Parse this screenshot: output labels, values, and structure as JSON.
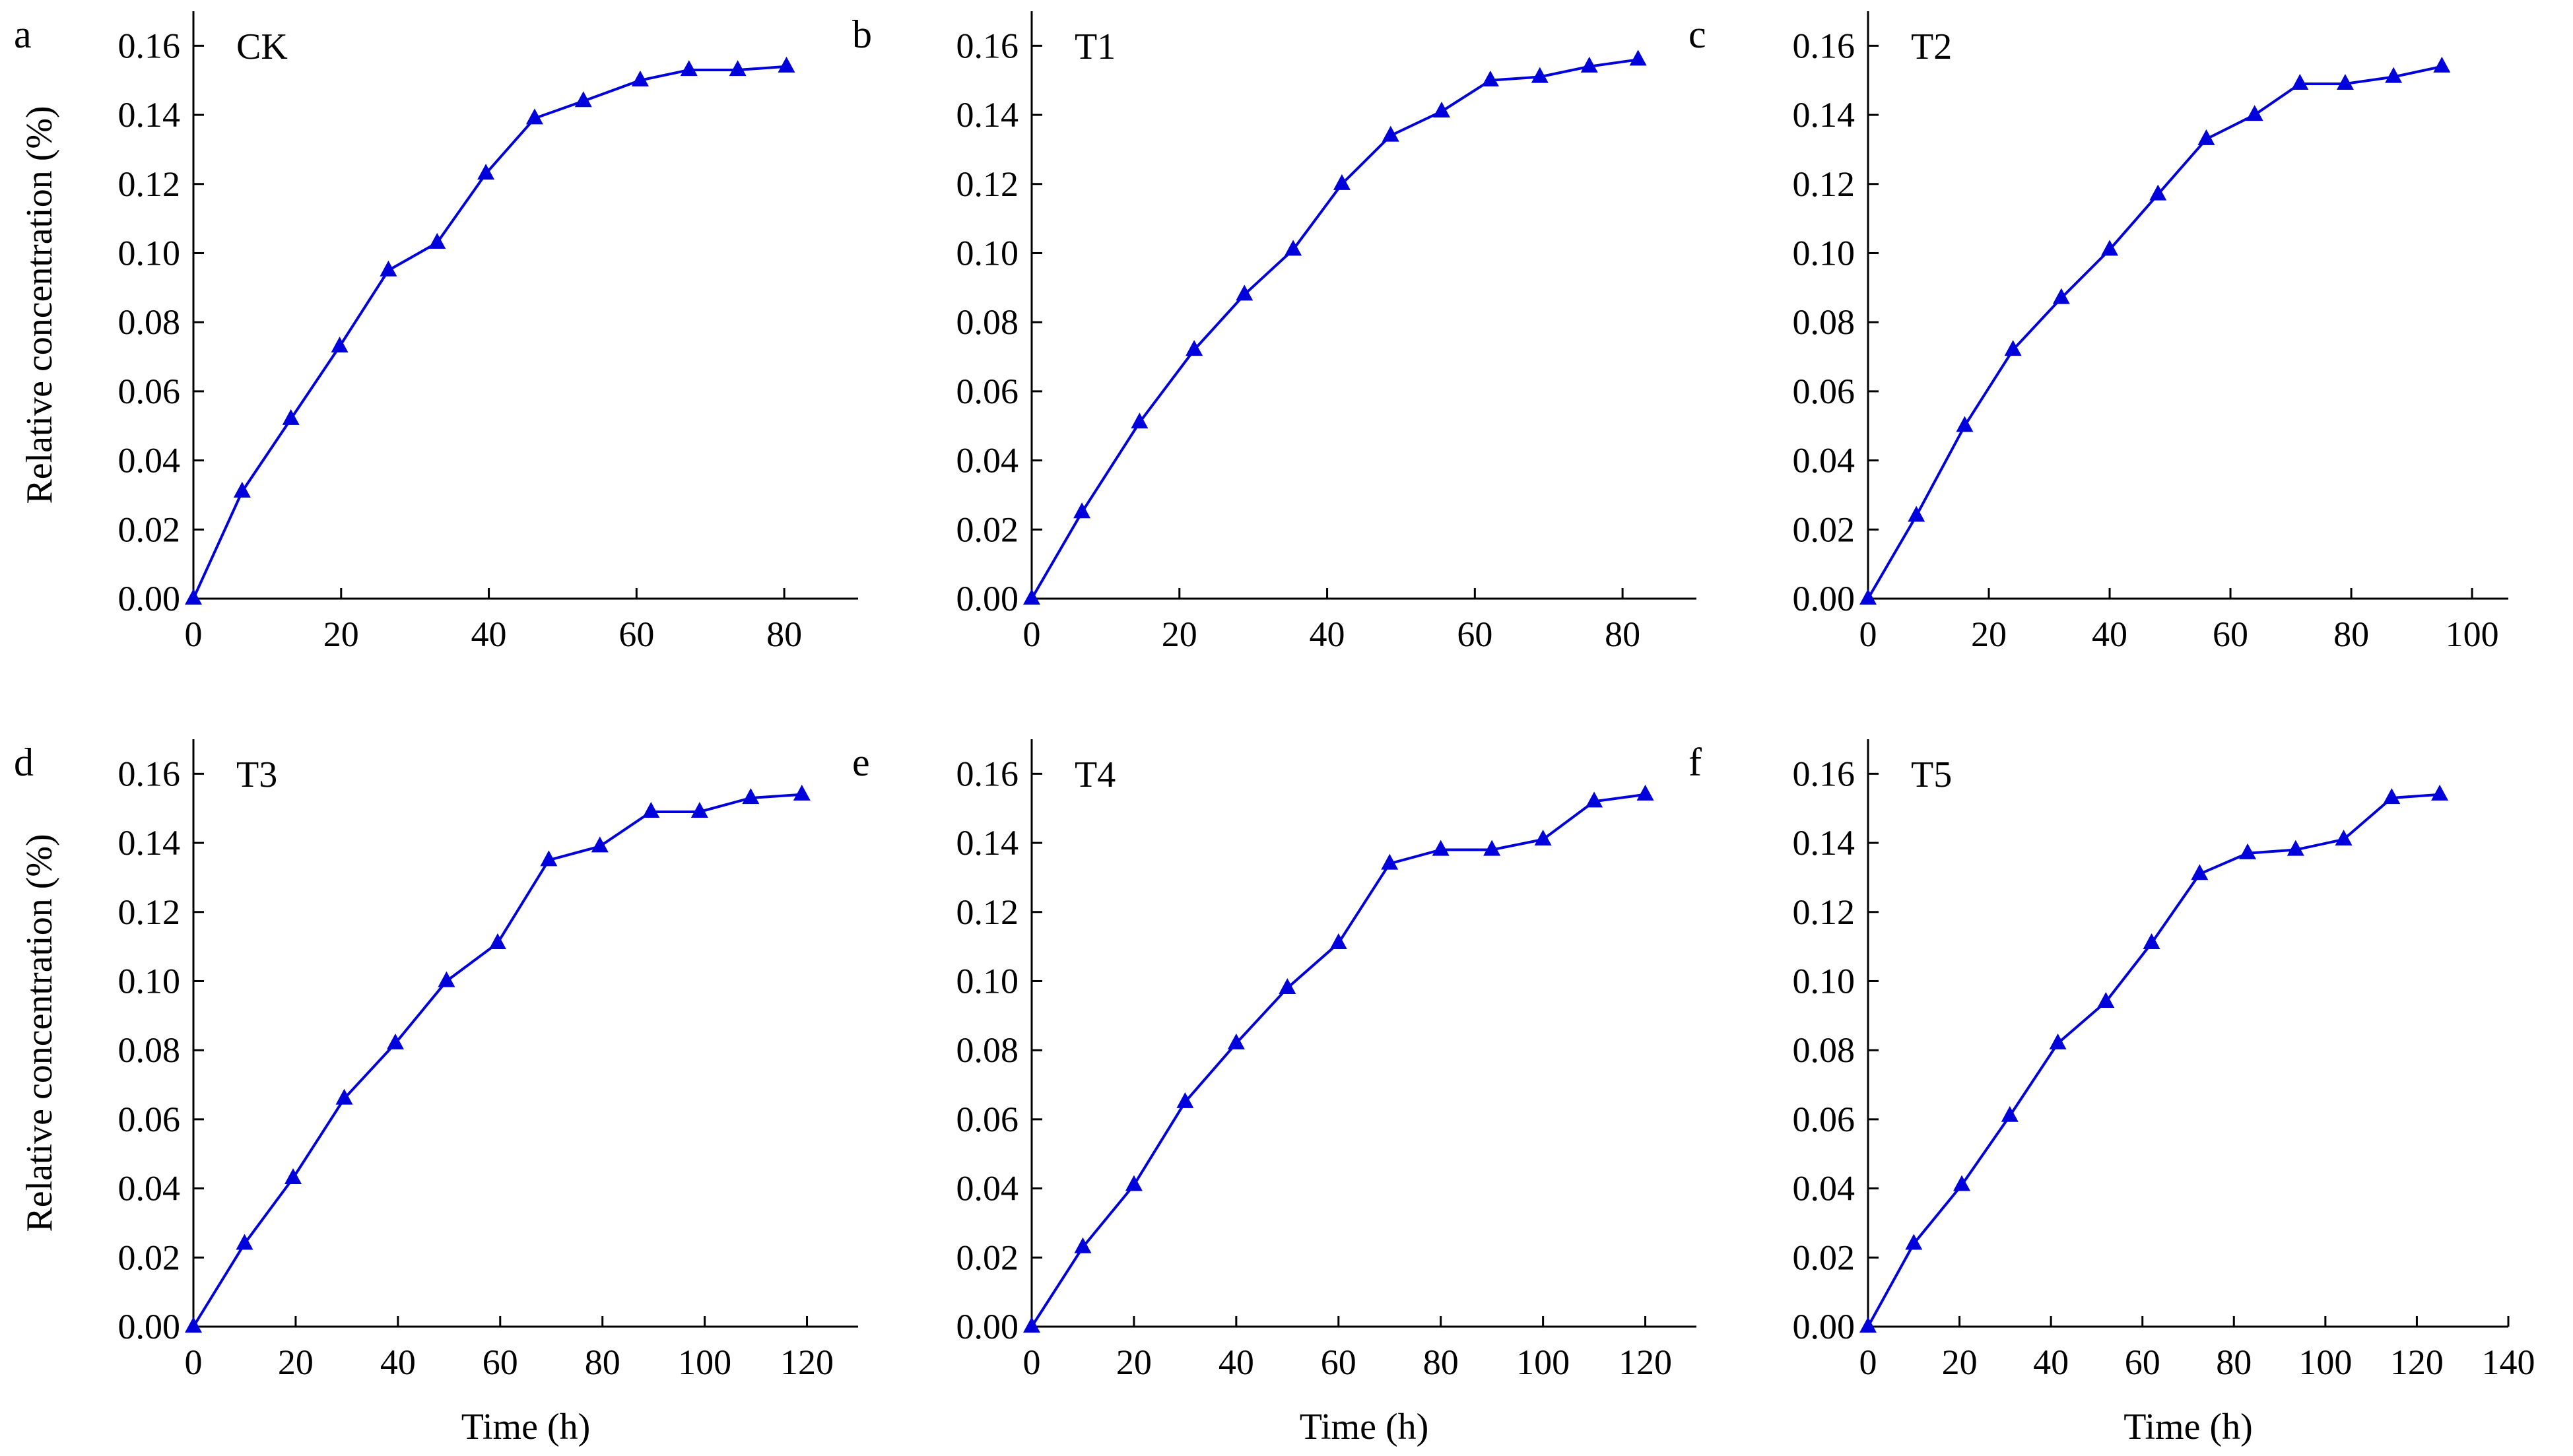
{
  "colors": {
    "series": "#0000dd",
    "axis": "#000000"
  },
  "marker": "triangle",
  "chart_data": [
    {
      "type": "line",
      "panel": "a",
      "series": [
        {
          "name": "CK",
          "x": [
            0,
            6.6,
            13.2,
            19.8,
            26.4,
            33,
            39.6,
            46.2,
            52.8,
            60.5,
            67.1,
            73.7,
            80.3
          ],
          "y": [
            0,
            0.031,
            0.052,
            0.073,
            0.095,
            0.103,
            0.123,
            0.139,
            0.144,
            0.15,
            0.153,
            0.153,
            0.154
          ]
        }
      ],
      "xlim": [
        0,
        90
      ],
      "ylim": [
        0,
        0.17
      ],
      "xticks": [
        "0",
        "20",
        "40",
        "60",
        "80"
      ],
      "yticks": [
        "0.00",
        "0.02",
        "0.04",
        "0.06",
        "0.08",
        "0.10",
        "0.12",
        "0.14",
        "0.16"
      ],
      "xlabel": "",
      "ylabel": "Relative concentration (%)"
    },
    {
      "type": "line",
      "panel": "b",
      "series": [
        {
          "name": "T1",
          "x": [
            0,
            6.8,
            14.6,
            22,
            28.8,
            35.4,
            42,
            48.6,
            55.5,
            62.1,
            68.8,
            75.5,
            82.1
          ],
          "y": [
            0,
            0.025,
            0.051,
            0.072,
            0.088,
            0.101,
            0.12,
            0.134,
            0.141,
            0.15,
            0.151,
            0.154,
            0.156
          ]
        }
      ],
      "xlim": [
        0,
        90
      ],
      "ylim": [
        0,
        0.17
      ],
      "xticks": [
        "0",
        "20",
        "40",
        "60",
        "80"
      ],
      "yticks": [
        "0.00",
        "0.02",
        "0.04",
        "0.06",
        "0.08",
        "0.10",
        "0.12",
        "0.14",
        "0.16"
      ],
      "xlabel": "",
      "ylabel": ""
    },
    {
      "type": "line",
      "panel": "c",
      "series": [
        {
          "name": "T2",
          "x": [
            0,
            8,
            16,
            24,
            32,
            40,
            48,
            56,
            64,
            71.5,
            79,
            87,
            95
          ],
          "y": [
            0,
            0.024,
            0.05,
            0.072,
            0.087,
            0.101,
            0.117,
            0.133,
            0.14,
            0.149,
            0.149,
            0.151,
            0.154
          ]
        }
      ],
      "xlim": [
        0,
        106
      ],
      "ylim": [
        0,
        0.17
      ],
      "xticks": [
        "0",
        "20",
        "40",
        "60",
        "80",
        "100"
      ],
      "yticks": [
        "0.00",
        "0.02",
        "0.04",
        "0.06",
        "0.08",
        "0.10",
        "0.12",
        "0.14",
        "0.16"
      ],
      "xlabel": "",
      "ylabel": ""
    },
    {
      "type": "line",
      "panel": "d",
      "series": [
        {
          "name": "T3",
          "x": [
            0,
            10,
            19.5,
            29.5,
            39.5,
            49.5,
            59.5,
            69.5,
            79.5,
            89.5,
            99,
            109,
            119
          ],
          "y": [
            0,
            0.024,
            0.043,
            0.066,
            0.082,
            0.1,
            0.111,
            0.135,
            0.139,
            0.149,
            0.149,
            0.153,
            0.154
          ]
        }
      ],
      "xlim": [
        0,
        130
      ],
      "ylim": [
        0,
        0.17
      ],
      "xticks": [
        "0",
        "20",
        "40",
        "60",
        "80",
        "100",
        "120"
      ],
      "yticks": [
        "0.00",
        "0.02",
        "0.04",
        "0.06",
        "0.08",
        "0.10",
        "0.12",
        "0.14",
        "0.16"
      ],
      "xlabel": "Time (h)",
      "ylabel": "Relative concentration (%)"
    },
    {
      "type": "line",
      "panel": "e",
      "series": [
        {
          "name": "T4",
          "x": [
            0,
            10,
            20,
            30,
            40,
            50,
            60,
            70,
            80,
            90,
            100,
            110,
            120
          ],
          "y": [
            0,
            0.023,
            0.041,
            0.065,
            0.082,
            0.098,
            0.111,
            0.134,
            0.138,
            0.138,
            0.141,
            0.152,
            0.154
          ]
        }
      ],
      "xlim": [
        0,
        130
      ],
      "ylim": [
        0,
        0.17
      ],
      "xticks": [
        "0",
        "20",
        "40",
        "60",
        "80",
        "100",
        "120"
      ],
      "yticks": [
        "0.00",
        "0.02",
        "0.04",
        "0.06",
        "0.08",
        "0.10",
        "0.12",
        "0.14",
        "0.16"
      ],
      "xlabel": "Time (h)",
      "ylabel": ""
    },
    {
      "type": "line",
      "panel": "f",
      "series": [
        {
          "name": "T5",
          "x": [
            0,
            10,
            20.5,
            31,
            41.5,
            52,
            62,
            72.5,
            83,
            93.5,
            104,
            114.5,
            125
          ],
          "y": [
            0,
            0.024,
            0.041,
            0.061,
            0.082,
            0.094,
            0.111,
            0.131,
            0.137,
            0.138,
            0.141,
            0.153,
            0.154
          ]
        }
      ],
      "xlim": [
        0,
        140
      ],
      "ylim": [
        0,
        0.17
      ],
      "xticks": [
        "0",
        "20",
        "40",
        "60",
        "80",
        "100",
        "120",
        "140"
      ],
      "yticks": [
        "0.00",
        "0.02",
        "0.04",
        "0.06",
        "0.08",
        "0.10",
        "0.12",
        "0.14",
        "0.16"
      ],
      "xlabel": "Time (h)",
      "ylabel": ""
    }
  ]
}
